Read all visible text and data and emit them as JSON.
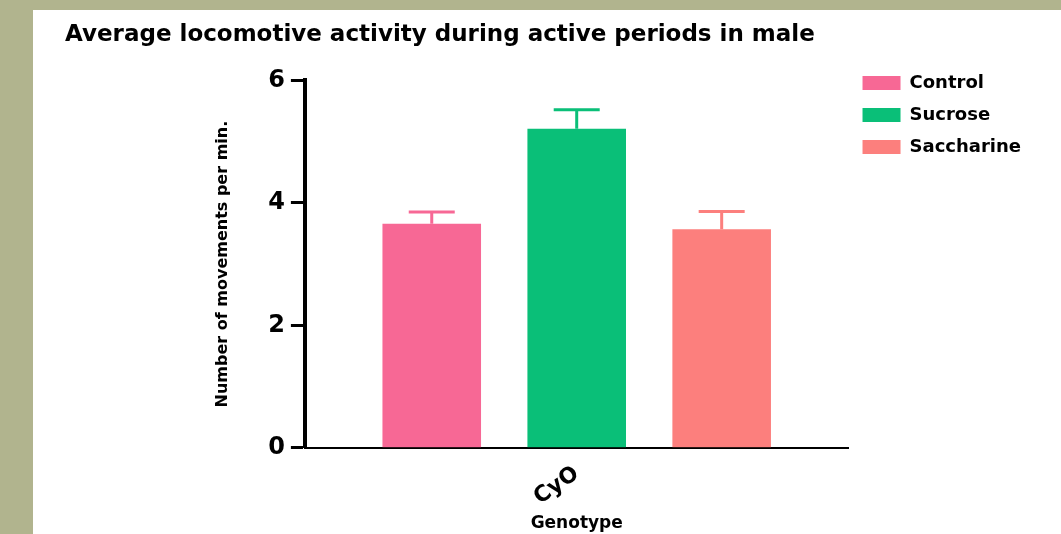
{
  "chart_data": {
    "type": "bar",
    "title": "Average locomotive activity during active periods in male",
    "xlabel": "Genotype",
    "ylabel": "Number of movements per min.",
    "categories": [
      "CyO"
    ],
    "series": [
      {
        "name": "Control",
        "color": "#f76895",
        "values": [
          3.66
        ],
        "errors": [
          [
            3.66,
            3.85
          ]
        ]
      },
      {
        "name": "Sucrose",
        "color": "#0abf78",
        "values": [
          5.21
        ],
        "errors": [
          [
            5.21,
            5.52
          ]
        ]
      },
      {
        "name": "Saccharine",
        "color": "#fc7f7d",
        "values": [
          3.57
        ],
        "errors": [
          [
            3.57,
            3.86
          ]
        ]
      }
    ],
    "ylim": [
      0,
      6
    ],
    "yticks": [
      0,
      2,
      4,
      6
    ],
    "grid": false,
    "legend": "top right"
  }
}
